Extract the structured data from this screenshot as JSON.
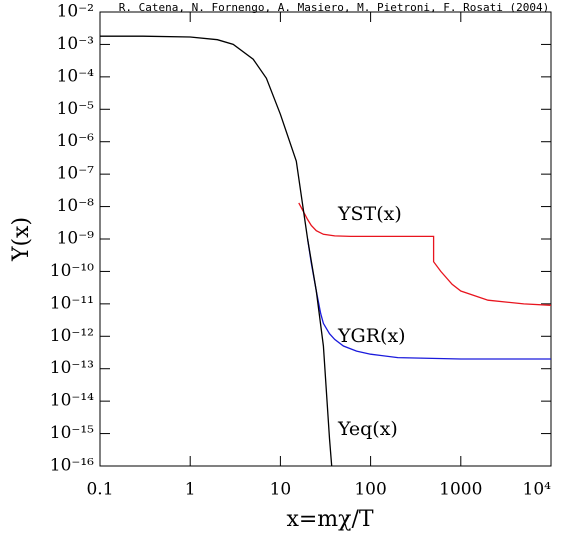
{
  "chart_data": {
    "type": "line",
    "title": "R. Catena, N. Fornengo, A. Masiero, M. Pietroni, F. Rosati (2004)",
    "xlabel": "x=mχ/T",
    "ylabel": "Y(x)",
    "log_x": true,
    "log_y": true,
    "xlim": [
      0.1,
      10000
    ],
    "ylim": [
      1e-16,
      0.01
    ],
    "xticks": [
      0.1,
      1,
      10,
      100,
      1000,
      {
        "value": 10000,
        "label": "10⁴"
      }
    ],
    "yticks": [
      {
        "value": 1e-16,
        "label": "10⁻¹⁶"
      },
      {
        "value": 1e-15,
        "label": "10⁻¹⁵"
      },
      {
        "value": 1e-14,
        "label": "10⁻¹⁴"
      },
      {
        "value": 1e-13,
        "label": "10⁻¹³"
      },
      {
        "value": 1e-12,
        "label": "10⁻¹²"
      },
      {
        "value": 1e-11,
        "label": "10⁻¹¹"
      },
      {
        "value": 1e-10,
        "label": "10⁻¹⁰"
      },
      {
        "value": 1e-09,
        "label": "10⁻⁹"
      },
      {
        "value": 1e-08,
        "label": "10⁻⁸"
      },
      {
        "value": 1e-07,
        "label": "10⁻⁷"
      },
      {
        "value": 1e-06,
        "label": "10⁻⁶"
      },
      {
        "value": 1e-05,
        "label": "10⁻⁵"
      },
      {
        "value": 0.0001,
        "label": "10⁻⁴"
      },
      {
        "value": 0.001,
        "label": "10⁻³"
      },
      {
        "value": 0.01,
        "label": "10⁻²"
      }
    ],
    "series": [
      {
        "name": "YST(x)",
        "color": "#e8141e",
        "x": [
          16,
          18,
          20,
          22,
          25,
          30,
          40,
          60,
          100,
          500,
          500,
          600,
          800,
          1000,
          2000,
          5000,
          10000
        ],
        "values": [
          1.3e-08,
          7e-09,
          4e-09,
          2.6e-09,
          1.8e-09,
          1.4e-09,
          1.25e-09,
          1.2e-09,
          1.2e-09,
          1.2e-09,
          2e-10,
          1e-10,
          4e-11,
          2.5e-11,
          1.3e-11,
          1e-11,
          9e-12
        ]
      },
      {
        "name": "YGR(x)",
        "color": "#1a1adc",
        "x": [
          20,
          22,
          25,
          28,
          30,
          35,
          40,
          50,
          70,
          100,
          200,
          1000,
          10000
        ],
        "values": [
          1e-09,
          1.8e-10,
          2.5e-11,
          5e-12,
          2.5e-12,
          1.2e-12,
          8e-13,
          5e-13,
          3.5e-13,
          2.8e-13,
          2.2e-13,
          2e-13,
          2e-13
        ]
      },
      {
        "name": "Yeq(x)",
        "color": "#000000",
        "x": [
          0.1,
          0.3,
          1,
          2,
          3,
          5,
          7,
          10,
          15,
          20,
          25,
          30,
          35,
          37
        ],
        "values": [
          0.0018,
          0.0018,
          0.0017,
          0.0014,
          0.001,
          0.00035,
          9e-05,
          7e-06,
          2.5e-07,
          1e-09,
          2.5e-11,
          5e-13,
          7e-16,
          1e-16
        ]
      }
    ]
  }
}
